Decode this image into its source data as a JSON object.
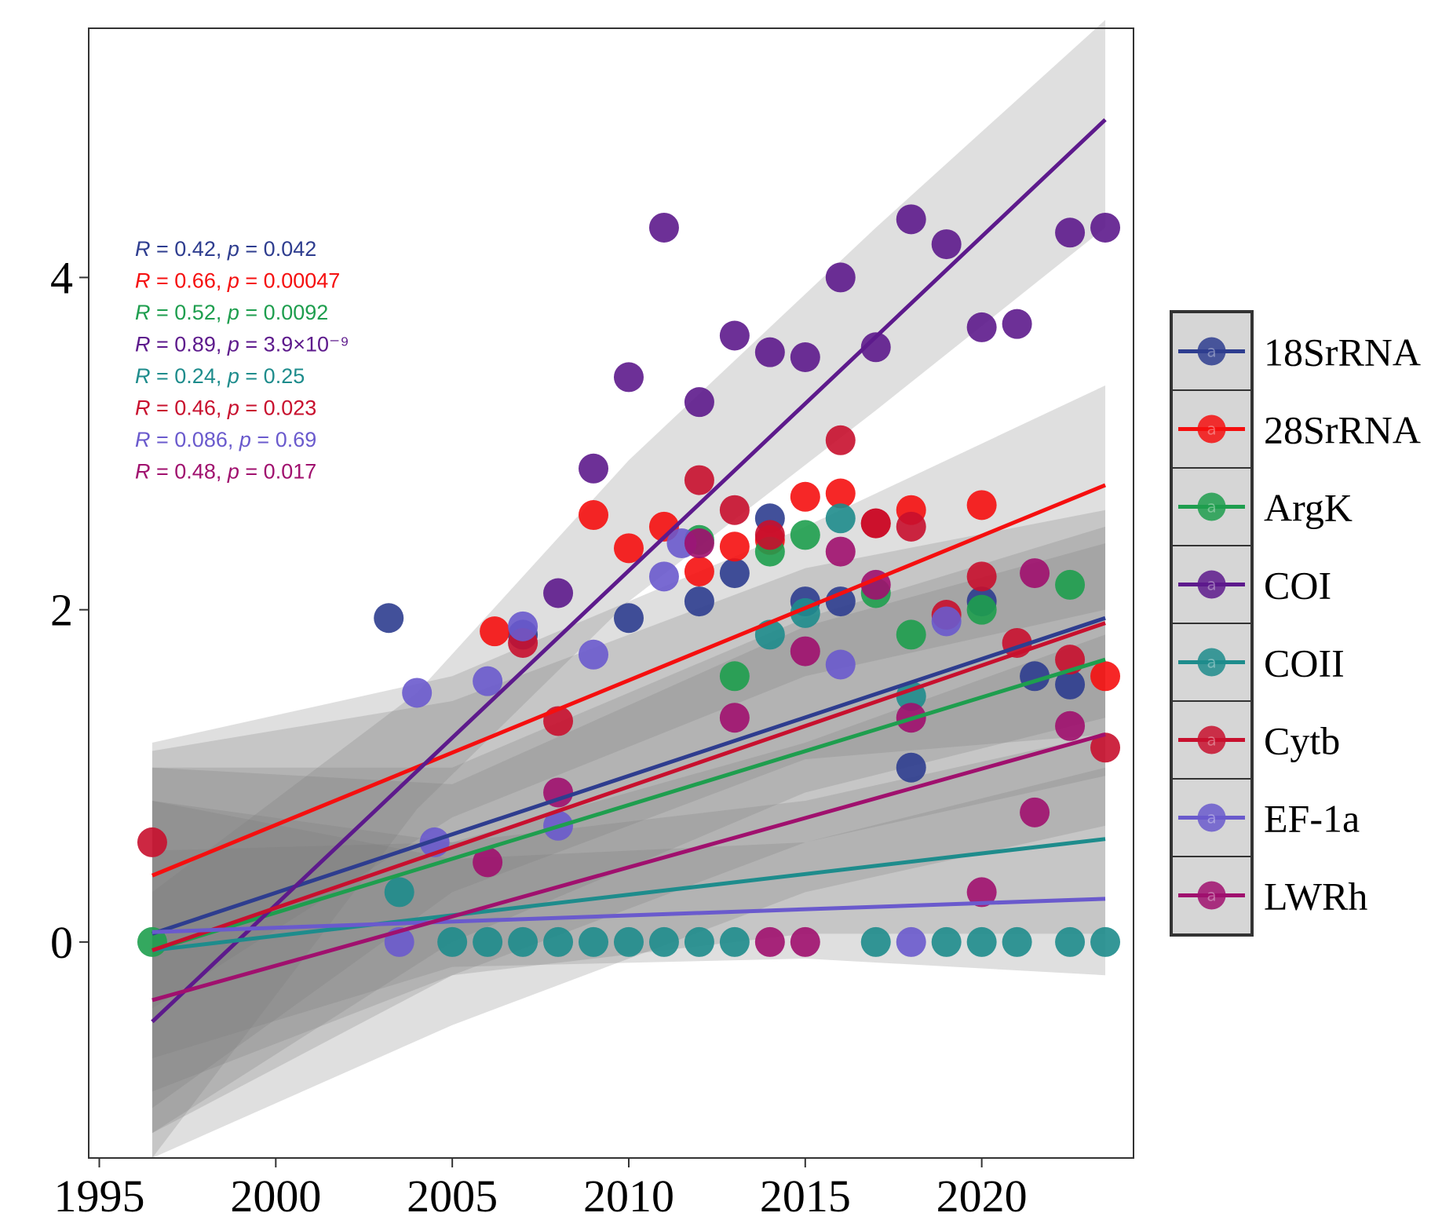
{
  "chart_data": {
    "type": "scatter",
    "title": "",
    "xlabel": "",
    "ylabel": "",
    "xlim": [
      1994.7,
      2024.3
    ],
    "ylim": [
      -1.3,
      5.5
    ],
    "xticks": [
      1995,
      2000,
      2005,
      2010,
      2015,
      2020
    ],
    "xtick_labels": [
      "1995",
      "2000",
      "2005",
      "2010",
      "2015",
      "2020"
    ],
    "yticks": [
      0,
      2,
      4
    ],
    "ytick_labels": [
      "0",
      "2",
      "4"
    ],
    "grid": false,
    "legend_position": "right",
    "legend_mark": "a",
    "series": [
      {
        "name": "18SrRNA",
        "color": "#2E3D8F",
        "stat": {
          "r_label": "R",
          "r": "0.42",
          "p_label": "p",
          "p": "0.042"
        },
        "trend": {
          "x": [
            1996.5,
            2023.5
          ],
          "y": [
            0.05,
            1.95
          ],
          "ci": [
            [
              1996.5,
              -1.0,
              1.15
            ],
            [
              2005,
              0.3,
              1.45
            ],
            [
              2015,
              1.1,
              2.25
            ],
            [
              2023.5,
              1.25,
              2.6
            ]
          ]
        },
        "points": [
          [
            2003.2,
            1.95
          ],
          [
            2007,
            1.85
          ],
          [
            2010,
            1.95
          ],
          [
            2012,
            2.05
          ],
          [
            2013,
            2.22
          ],
          [
            2014,
            2.55
          ],
          [
            2015,
            2.05
          ],
          [
            2016,
            2.05
          ],
          [
            2018,
            1.05
          ],
          [
            2020,
            2.05
          ],
          [
            2021.5,
            1.6
          ],
          [
            2022.5,
            1.55
          ]
        ]
      },
      {
        "name": "28SrRNA",
        "color": "#F50F0F",
        "stat": {
          "r_label": "R",
          "r": "0.66",
          "p_label": "p",
          "p": "0.00047"
        },
        "trend": {
          "x": [
            1996.5,
            2023.5
          ],
          "y": [
            0.4,
            2.75
          ],
          "ci": [
            [
              1996.5,
              -0.4,
              1.2
            ],
            [
              2005,
              0.75,
              1.6
            ],
            [
              2015,
              1.6,
              2.5
            ],
            [
              2023.5,
              2.0,
              3.35
            ]
          ]
        },
        "points": [
          [
            2006.2,
            1.87
          ],
          [
            2009,
            2.57
          ],
          [
            2010,
            2.37
          ],
          [
            2011,
            2.5
          ],
          [
            2012,
            2.23
          ],
          [
            2013,
            2.38
          ],
          [
            2014,
            2.42
          ],
          [
            2015,
            2.68
          ],
          [
            2016,
            2.7
          ],
          [
            2017,
            2.52
          ],
          [
            2018,
            2.6
          ],
          [
            2020,
            2.63
          ],
          [
            2023.5,
            1.6
          ]
        ]
      },
      {
        "name": "ArgK",
        "color": "#1E9E4E",
        "stat": {
          "r_label": "R",
          "r": "0.52",
          "p_label": "p",
          "p": "0.0092"
        },
        "trend": {
          "x": [
            1996.5,
            2023.5
          ],
          "y": [
            -0.05,
            1.7
          ],
          "ci": [
            [
              1996.5,
              -1.15,
              1.05
            ],
            [
              2005,
              -0.2,
              0.95
            ],
            [
              2015,
              0.6,
              1.9
            ],
            [
              2023.5,
              1.0,
              2.4
            ]
          ]
        },
        "points": [
          [
            1996.5,
            0.0
          ],
          [
            2012,
            2.42
          ],
          [
            2013,
            1.6
          ],
          [
            2014,
            2.35
          ],
          [
            2015,
            2.45
          ],
          [
            2017,
            2.1
          ],
          [
            2018,
            1.85
          ],
          [
            2020,
            2.0
          ],
          [
            2022.5,
            2.15
          ]
        ]
      },
      {
        "name": "COI",
        "color": "#5D1A8C",
        "stat": {
          "r_label": "R",
          "r": "0.89",
          "p_label": "p",
          "p": "3.9×10⁻⁹"
        },
        "trend": {
          "x": [
            1996.5,
            2023.5
          ],
          "y": [
            -0.48,
            4.95
          ],
          "ci": [
            [
              1996.5,
              -1.3,
              0.3
            ],
            [
              2004,
              0.8,
              1.5
            ],
            [
              2010,
              2.05,
              2.9
            ],
            [
              2017,
              3.2,
              4.3
            ],
            [
              2023.5,
              4.3,
              5.55
            ]
          ]
        },
        "points": [
          [
            2008,
            2.1
          ],
          [
            2009,
            2.85
          ],
          [
            2010,
            3.4
          ],
          [
            2011,
            4.3
          ],
          [
            2012,
            3.25
          ],
          [
            2013,
            3.65
          ],
          [
            2014,
            3.55
          ],
          [
            2015,
            3.52
          ],
          [
            2016,
            4.0
          ],
          [
            2017,
            3.58
          ],
          [
            2018,
            4.35
          ],
          [
            2019,
            4.2
          ],
          [
            2020,
            3.7
          ],
          [
            2021,
            3.72
          ],
          [
            2022.5,
            4.27
          ],
          [
            2023.5,
            4.3
          ]
        ]
      },
      {
        "name": "COII",
        "color": "#1E8C8C",
        "stat": {
          "r_label": "R",
          "r": "0.24",
          "p_label": "p",
          "p": "0.25"
        },
        "trend": {
          "x": [
            1996.5,
            2023.5
          ],
          "y": [
            -0.05,
            0.62
          ],
          "ci": [
            [
              1996.5,
              -0.9,
              0.85
            ],
            [
              2005,
              -0.2,
              0.6
            ],
            [
              2015,
              0.05,
              0.85
            ],
            [
              2023.5,
              0.05,
              1.25
            ]
          ]
        },
        "points": [
          [
            2003.5,
            0.3
          ],
          [
            2005,
            0.0
          ],
          [
            2006,
            0.0
          ],
          [
            2007,
            0.0
          ],
          [
            2008,
            0.0
          ],
          [
            2009,
            0.0
          ],
          [
            2010,
            0.0
          ],
          [
            2011,
            0.0
          ],
          [
            2012,
            0.0
          ],
          [
            2013,
            0.0
          ],
          [
            2014,
            1.85
          ],
          [
            2015,
            1.98
          ],
          [
            2016,
            2.55
          ],
          [
            2017,
            0.0
          ],
          [
            2018,
            1.48
          ],
          [
            2019,
            0.0
          ],
          [
            2020,
            0.0
          ],
          [
            2021,
            0.0
          ],
          [
            2022.5,
            0.0
          ],
          [
            2023.5,
            0.0
          ]
        ]
      },
      {
        "name": "Cytb",
        "color": "#C8102E",
        "stat": {
          "r_label": "R",
          "r": "0.46",
          "p_label": "p",
          "p": "0.023"
        },
        "trend": {
          "x": [
            1996.5,
            2023.5
          ],
          "y": [
            -0.05,
            1.92
          ],
          "ci": [
            [
              1996.5,
              -1.15,
              1.05
            ],
            [
              2005,
              0.0,
              1.05
            ],
            [
              2015,
              0.9,
              1.95
            ],
            [
              2023.5,
              1.35,
              2.5
            ]
          ]
        },
        "points": [
          [
            1996.5,
            0.6
          ],
          [
            2007,
            1.8
          ],
          [
            2008,
            1.33
          ],
          [
            2012,
            2.78
          ],
          [
            2013,
            2.6
          ],
          [
            2014,
            2.45
          ],
          [
            2016,
            3.02
          ],
          [
            2017,
            2.52
          ],
          [
            2018,
            2.5
          ],
          [
            2019,
            1.97
          ],
          [
            2020,
            2.2
          ],
          [
            2021,
            1.8
          ],
          [
            2022.5,
            1.7
          ],
          [
            2023.5,
            1.17
          ]
        ]
      },
      {
        "name": "EF-1a",
        "color": "#6A5ACD",
        "stat": {
          "r_label": "R",
          "r": "0.086",
          "p_label": "p",
          "p": "0.69"
        },
        "trend": {
          "x": [
            1996.5,
            2023.5
          ],
          "y": [
            0.06,
            0.26
          ],
          "ci": [
            [
              1996.5,
              -0.7,
              0.85
            ],
            [
              2005,
              -0.15,
              0.5
            ],
            [
              2015,
              -0.1,
              0.6
            ],
            [
              2023.5,
              -0.2,
              1.05
            ]
          ]
        },
        "points": [
          [
            2003.5,
            0.0
          ],
          [
            2004,
            1.5
          ],
          [
            2004.5,
            0.6
          ],
          [
            2006,
            1.57
          ],
          [
            2007,
            1.9
          ],
          [
            2008,
            0.7
          ],
          [
            2009,
            1.73
          ],
          [
            2011,
            2.2
          ],
          [
            2011.5,
            2.4
          ],
          [
            2016,
            1.67
          ],
          [
            2018,
            0.0
          ],
          [
            2019,
            1.93
          ]
        ]
      },
      {
        "name": "LWRh",
        "color": "#A0106E",
        "stat": {
          "r_label": "R",
          "r": "0.48",
          "p_label": "p",
          "p": "0.017"
        },
        "trend": {
          "x": [
            1996.5,
            2023.5
          ],
          "y": [
            -0.35,
            1.25
          ],
          "ci": [
            [
              1996.5,
              -1.3,
              0.55
            ],
            [
              2005,
              -0.5,
              0.6
            ],
            [
              2015,
              0.3,
              1.2
            ],
            [
              2023.5,
              0.7,
              1.85
            ]
          ]
        },
        "points": [
          [
            2006,
            0.48
          ],
          [
            2008,
            0.9
          ],
          [
            2012,
            2.4
          ],
          [
            2013,
            1.35
          ],
          [
            2014,
            0.0
          ],
          [
            2015,
            1.75
          ],
          [
            2015,
            0.0
          ],
          [
            2016,
            2.35
          ],
          [
            2017,
            2.15
          ],
          [
            2018,
            1.35
          ],
          [
            2020,
            0.3
          ],
          [
            2021.5,
            2.22
          ],
          [
            2021.5,
            0.78
          ],
          [
            2022.5,
            1.3
          ]
        ]
      }
    ]
  }
}
